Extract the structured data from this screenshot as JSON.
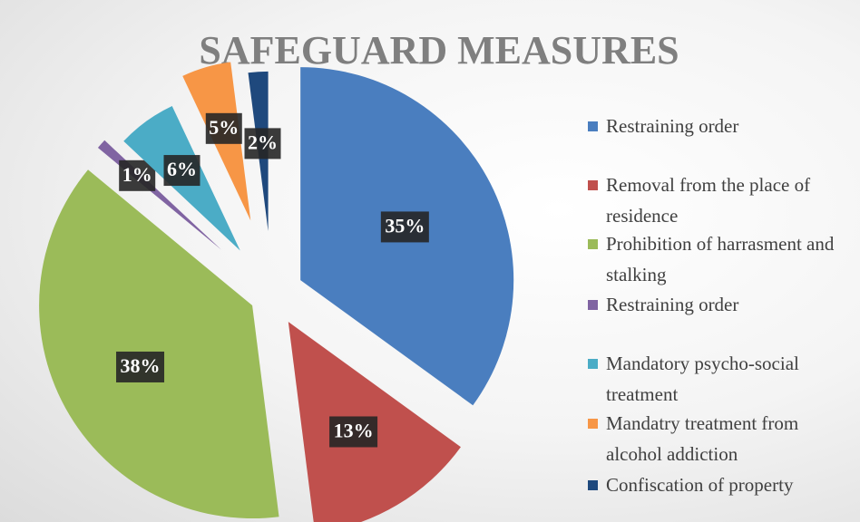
{
  "chart_data": {
    "type": "pie",
    "title": "SAFEGUARD MEASURES",
    "categories": [
      "Restraining order",
      "Removal from the place of residence",
      "Prohibition of harrasment and stalking",
      "Restraining order",
      "Mandatory psycho-social treatment",
      "Mandatry treatment from alcohol addiction",
      "Confiscation of property"
    ],
    "values": [
      35,
      13,
      38,
      1,
      6,
      5,
      2
    ],
    "value_labels": [
      "35%",
      "13%",
      "38%",
      "1%",
      "6%",
      "5%",
      "2%"
    ],
    "colors": [
      "#4a7ebf",
      "#c0504d",
      "#9bbb59",
      "#8064a2",
      "#4bacc6",
      "#f79646",
      "#1f497d"
    ],
    "legend": "right"
  }
}
